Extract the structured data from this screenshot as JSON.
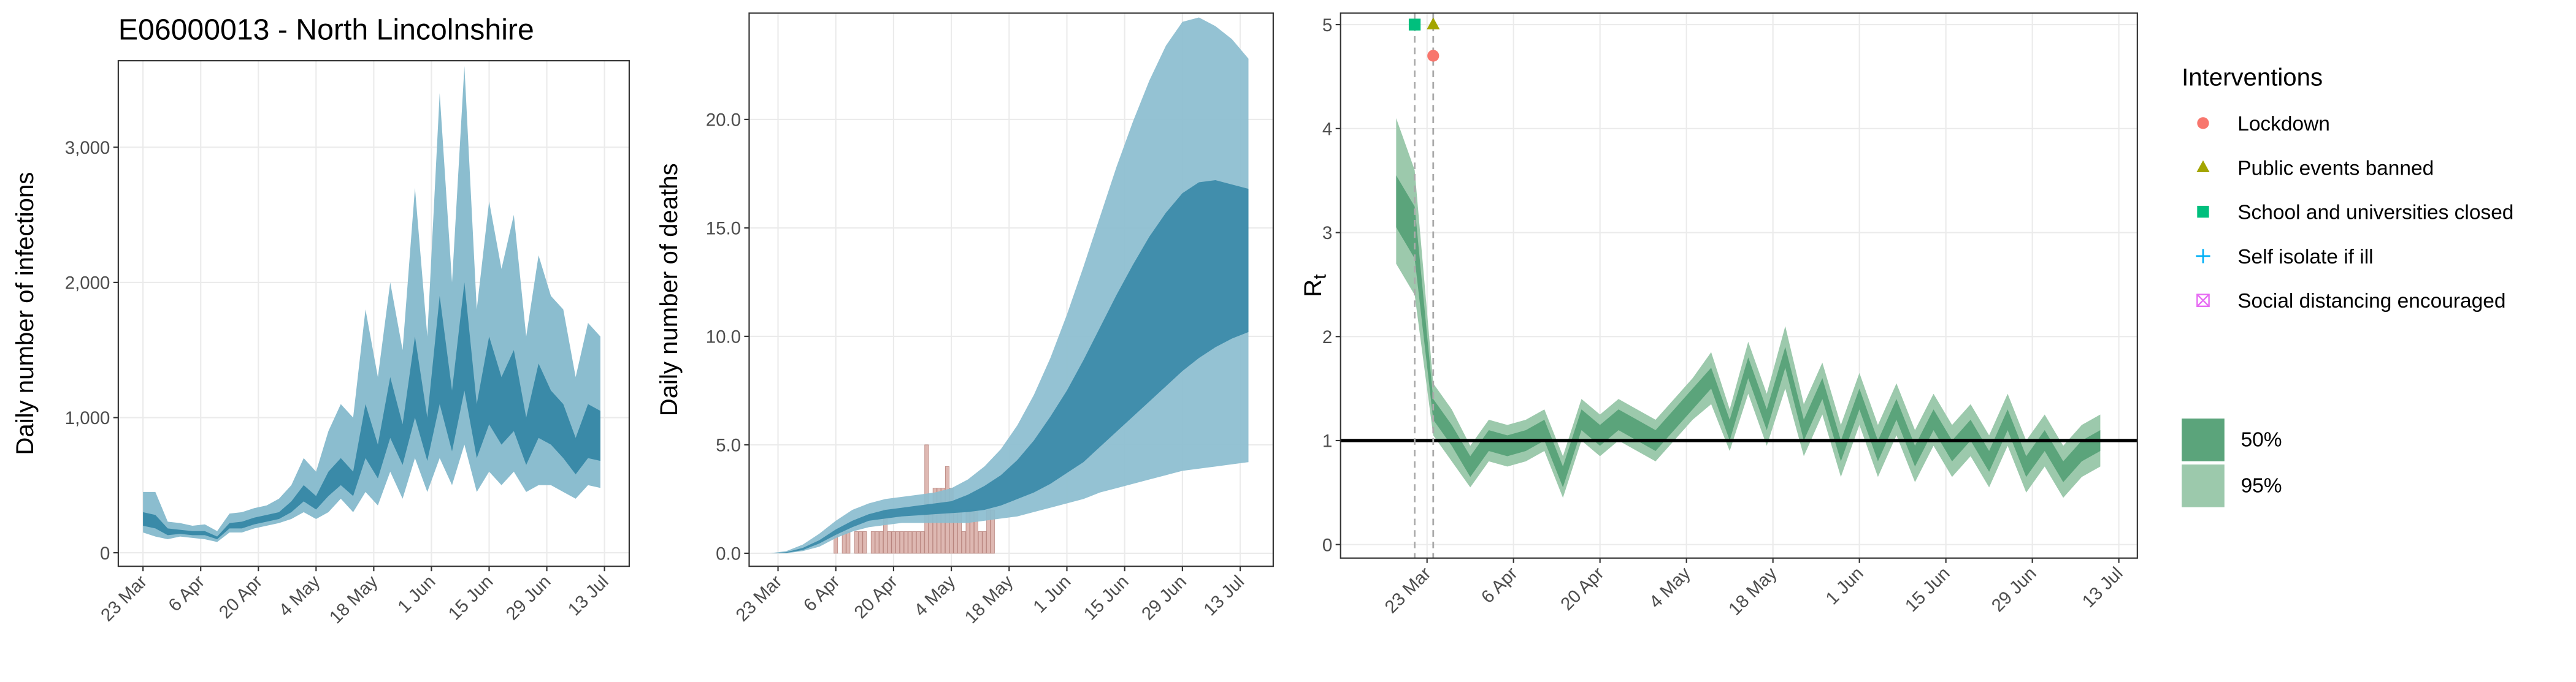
{
  "chart_data": [
    {
      "type": "band",
      "title": "E06000013 - North Lincolnshire",
      "ylabel": "Daily number of infections",
      "xlim": [
        "17 Mar",
        "19 Jul"
      ],
      "xticks": [
        "23 Mar",
        "6 Apr",
        "20 Apr",
        "4 May",
        "18 May",
        "1 Jun",
        "15 Jun",
        "29 Jun",
        "13 Jul"
      ],
      "ylim": [
        -100,
        3640
      ],
      "yticks": [
        0,
        {
          "value": 1000,
          "label": "1,000"
        },
        {
          "value": 2000,
          "label": "2,000"
        },
        {
          "value": 3000,
          "label": "3,000"
        }
      ],
      "grid": true,
      "x": [
        "23 Mar",
        "26 Mar",
        "29 Mar",
        "1 Apr",
        "4 Apr",
        "7 Apr",
        "10 Apr",
        "13 Apr",
        "16 Apr",
        "19 Apr",
        "22 Apr",
        "25 Apr",
        "28 Apr",
        "1 May",
        "4 May",
        "7 May",
        "10 May",
        "13 May",
        "16 May",
        "19 May",
        "22 May",
        "25 May",
        "28 May",
        "31 May",
        "3 Jun",
        "6 Jun",
        "9 Jun",
        "12 Jun",
        "15 Jun",
        "18 Jun",
        "21 Jun",
        "24 Jun",
        "27 Jun",
        "30 Jun",
        "3 Jul",
        "6 Jul",
        "9 Jul",
        "12 Jul"
      ],
      "series": [
        {
          "color": "#8bbdcf",
          "lower": [
            150,
            120,
            100,
            120,
            110,
            100,
            80,
            150,
            150,
            180,
            200,
            220,
            250,
            300,
            250,
            300,
            400,
            300,
            450,
            350,
            600,
            400,
            700,
            450,
            700,
            500,
            800,
            450,
            600,
            500,
            600,
            450,
            500,
            500,
            450,
            400,
            500,
            480
          ],
          "upper": [
            450,
            450,
            230,
            220,
            200,
            210,
            160,
            290,
            300,
            330,
            350,
            400,
            500,
            700,
            600,
            900,
            1100,
            1000,
            1800,
            1300,
            2000,
            1500,
            2700,
            1600,
            3400,
            2000,
            3600,
            1800,
            2600,
            2100,
            2500,
            1600,
            2200,
            1900,
            1800,
            1300,
            1700,
            1600
          ]
        },
        {
          "color": "#3a8aa8",
          "lower": [
            200,
            180,
            130,
            140,
            130,
            130,
            100,
            180,
            180,
            210,
            230,
            250,
            300,
            380,
            320,
            420,
            500,
            420,
            700,
            550,
            850,
            650,
            1000,
            680,
            1100,
            750,
            1200,
            700,
            950,
            800,
            900,
            650,
            850,
            800,
            700,
            580,
            700,
            680
          ],
          "upper": [
            300,
            280,
            180,
            170,
            160,
            160,
            120,
            220,
            230,
            260,
            280,
            300,
            380,
            500,
            420,
            600,
            700,
            600,
            1100,
            800,
            1300,
            950,
            1600,
            1000,
            1900,
            1200,
            2000,
            1100,
            1600,
            1300,
            1500,
            1000,
            1400,
            1200,
            1100,
            850,
            1100,
            1050
          ]
        }
      ]
    },
    {
      "type": "band",
      "ylabel": "Daily number of deaths",
      "xlim": [
        "16 Mar",
        "21 Jul"
      ],
      "xticks": [
        "23 Mar",
        "6 Apr",
        "20 Apr",
        "4 May",
        "18 May",
        "1 Jun",
        "15 Jun",
        "29 Jun",
        "13 Jul"
      ],
      "ylim": [
        -0.6,
        24.9
      ],
      "yticks": [
        {
          "value": 0,
          "label": "0.0"
        },
        {
          "value": 5,
          "label": "5.0"
        },
        {
          "value": 10,
          "label": "10.0"
        },
        {
          "value": 15,
          "label": "15.0"
        },
        {
          "value": 20,
          "label": "20.0"
        }
      ],
      "grid": true,
      "bars": {
        "color": "#d8aca5",
        "edge": "#b9857e",
        "x": [
          "5 Apr",
          "6 Apr",
          "7 Apr",
          "8 Apr",
          "9 Apr",
          "10 Apr",
          "11 Apr",
          "12 Apr",
          "13 Apr",
          "14 Apr",
          "15 Apr",
          "16 Apr",
          "17 Apr",
          "18 Apr",
          "19 Apr",
          "20 Apr",
          "21 Apr",
          "22 Apr",
          "23 Apr",
          "24 Apr",
          "25 Apr",
          "26 Apr",
          "27 Apr",
          "28 Apr",
          "29 Apr",
          "30 Apr",
          "1 May",
          "2 May",
          "3 May",
          "4 May",
          "5 May",
          "6 May",
          "7 May",
          "8 May",
          "9 May",
          "10 May",
          "11 May",
          "12 May",
          "13 May",
          "14 May"
        ],
        "values": [
          0,
          1,
          0,
          1,
          1,
          0,
          1,
          1,
          1,
          0,
          1,
          1,
          1,
          2,
          1,
          1,
          1,
          1,
          1,
          1,
          1,
          1,
          1,
          5,
          2,
          3,
          3,
          3,
          4,
          3,
          2,
          2,
          1,
          2,
          2,
          2,
          1,
          1,
          2,
          2
        ]
      },
      "x": [
        "21 Mar",
        "25 Mar",
        "29 Mar",
        "2 Apr",
        "6 Apr",
        "10 Apr",
        "14 Apr",
        "18 Apr",
        "22 Apr",
        "26 Apr",
        "30 Apr",
        "4 May",
        "8 May",
        "12 May",
        "16 May",
        "20 May",
        "24 May",
        "28 May",
        "1 Jun",
        "5 Jun",
        "9 Jun",
        "13 Jun",
        "17 Jun",
        "21 Jun",
        "25 Jun",
        "29 Jun",
        "3 Jul",
        "7 Jul",
        "11 Jul",
        "15 Jul"
      ],
      "series": [
        {
          "color": "#8bbdcf",
          "lower": [
            0,
            0,
            0.1,
            0.3,
            0.7,
            1.0,
            1.2,
            1.3,
            1.4,
            1.4,
            1.4,
            1.4,
            1.4,
            1.5,
            1.6,
            1.7,
            1.9,
            2.1,
            2.3,
            2.5,
            2.8,
            3.0,
            3.2,
            3.4,
            3.6,
            3.8,
            3.9,
            4.0,
            4.1,
            4.2
          ],
          "upper": [
            0,
            0.1,
            0.4,
            0.9,
            1.5,
            2.0,
            2.3,
            2.5,
            2.6,
            2.7,
            2.8,
            3.0,
            3.4,
            4.0,
            4.8,
            5.9,
            7.3,
            9.0,
            11.0,
            13.2,
            15.5,
            17.8,
            19.9,
            21.8,
            23.4,
            24.5,
            24.7,
            24.3,
            23.7,
            22.8
          ]
        },
        {
          "color": "#3a8aa8",
          "lower": [
            0,
            0.02,
            0.15,
            0.45,
            0.85,
            1.2,
            1.5,
            1.6,
            1.7,
            1.75,
            1.8,
            1.85,
            1.9,
            2.0,
            2.2,
            2.5,
            2.8,
            3.2,
            3.7,
            4.2,
            4.9,
            5.6,
            6.3,
            7.0,
            7.7,
            8.4,
            9.0,
            9.5,
            9.9,
            10.2
          ],
          "upper": [
            0,
            0.05,
            0.25,
            0.6,
            1.1,
            1.5,
            1.8,
            2.0,
            2.1,
            2.2,
            2.3,
            2.4,
            2.7,
            3.1,
            3.6,
            4.3,
            5.2,
            6.3,
            7.5,
            8.9,
            10.4,
            11.9,
            13.3,
            14.6,
            15.7,
            16.6,
            17.1,
            17.2,
            17.0,
            16.8
          ]
        }
      ]
    },
    {
      "type": "band",
      "ylabel": "R",
      "ylabel_subscript": "t",
      "xlim": [
        "9 Mar",
        "16 Jul"
      ],
      "xticks": [
        "23 Mar",
        "6 Apr",
        "20 Apr",
        "4 May",
        "18 May",
        "1 Jun",
        "15 Jun",
        "29 Jun",
        "13 Jul"
      ],
      "ylim": [
        -0.13,
        5.11
      ],
      "yticks": [
        0,
        1,
        2,
        3,
        4,
        5
      ],
      "grid": true,
      "hline": 1,
      "x": [
        "18 Mar",
        "21 Mar",
        "24 Mar",
        "27 Mar",
        "30 Mar",
        "2 Apr",
        "5 Apr",
        "8 Apr",
        "11 Apr",
        "14 Apr",
        "17 Apr",
        "20 Apr",
        "23 Apr",
        "26 Apr",
        "29 Apr",
        "2 May",
        "5 May",
        "8 May",
        "11 May",
        "14 May",
        "17 May",
        "20 May",
        "23 May",
        "26 May",
        "29 May",
        "1 Jun",
        "4 Jun",
        "7 Jun",
        "10 Jun",
        "13 Jun",
        "16 Jun",
        "19 Jun",
        "22 Jun",
        "25 Jun",
        "28 Jun",
        "1 Jul",
        "4 Jul",
        "7 Jul",
        "10 Jul"
      ],
      "series": [
        {
          "name": "95%",
          "color": "#9cc9ac",
          "lower": [
            2.7,
            2.4,
            1.05,
            0.8,
            0.55,
            0.8,
            0.75,
            0.8,
            0.9,
            0.45,
            1.0,
            0.85,
            1.0,
            0.9,
            0.8,
            1.0,
            1.2,
            1.35,
            0.9,
            1.45,
            0.95,
            1.5,
            0.85,
            1.25,
            0.65,
            1.15,
            0.65,
            1.05,
            0.6,
            0.95,
            0.65,
            0.85,
            0.55,
            0.95,
            0.5,
            0.75,
            0.45,
            0.65,
            0.75
          ],
          "upper": [
            4.1,
            3.6,
            1.55,
            1.3,
            0.95,
            1.2,
            1.15,
            1.2,
            1.3,
            0.85,
            1.4,
            1.25,
            1.4,
            1.3,
            1.2,
            1.4,
            1.6,
            1.85,
            1.3,
            1.95,
            1.45,
            2.1,
            1.35,
            1.75,
            1.15,
            1.65,
            1.15,
            1.55,
            1.1,
            1.45,
            1.15,
            1.35,
            1.05,
            1.45,
            1.0,
            1.25,
            0.95,
            1.15,
            1.25
          ]
        },
        {
          "name": "50%",
          "color": "#5ba47b",
          "lower": [
            3.05,
            2.75,
            1.2,
            0.95,
            0.65,
            0.9,
            0.85,
            0.9,
            1.0,
            0.55,
            1.1,
            0.95,
            1.1,
            1.0,
            0.9,
            1.1,
            1.3,
            1.5,
            1.0,
            1.6,
            1.1,
            1.7,
            1.0,
            1.4,
            0.8,
            1.3,
            0.8,
            1.2,
            0.75,
            1.1,
            0.8,
            1.0,
            0.7,
            1.1,
            0.65,
            0.9,
            0.6,
            0.8,
            0.9
          ],
          "upper": [
            3.55,
            3.25,
            1.4,
            1.15,
            0.85,
            1.1,
            1.05,
            1.1,
            1.2,
            0.75,
            1.3,
            1.15,
            1.3,
            1.2,
            1.1,
            1.3,
            1.5,
            1.7,
            1.2,
            1.8,
            1.3,
            1.9,
            1.2,
            1.6,
            1.0,
            1.5,
            1.0,
            1.4,
            0.95,
            1.3,
            1.0,
            1.2,
            0.9,
            1.3,
            0.85,
            1.1,
            0.8,
            1.0,
            1.1
          ]
        }
      ],
      "legend_title": "Interventions",
      "interventions": [
        {
          "name": "Lockdown",
          "date": "24 Mar",
          "value": 4.7,
          "color": "#f8766d",
          "shape": "circle"
        },
        {
          "name": "Public events banned",
          "date": "24 Mar",
          "value": 5,
          "color": "#a3a500",
          "shape": "triangle"
        },
        {
          "name": "School and universities closed",
          "date": "21 Mar",
          "value": 5,
          "color": "#00bf7d",
          "shape": "square"
        },
        {
          "name": "Self isolate if ill",
          "date": null,
          "value": null,
          "color": "#00b0f6",
          "shape": "plus"
        },
        {
          "name": "Social distancing encouraged",
          "date": null,
          "value": null,
          "color": "#e76bf3",
          "shape": "boxx"
        }
      ]
    }
  ]
}
